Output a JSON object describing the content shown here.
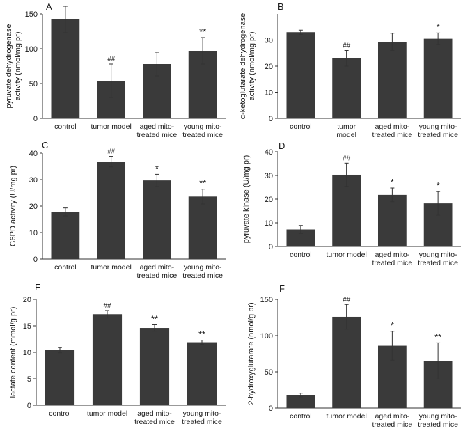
{
  "colors": {
    "bar": "#3a3a3a",
    "axis": "#333333",
    "text": "#1a1a1a"
  },
  "chart_data": [
    {
      "type": "bar",
      "panel_label": "A",
      "ylabel": "pyruvate dehydrogenase activity (nmol/mg pr)",
      "ylabel_lines": [
        "pyruvate dehydrogenase",
        "activity (nmol/mg pr)"
      ],
      "categories": [
        "control",
        "tumor model",
        "aged mito-treated mice",
        "young mito-treated mice"
      ],
      "category_lines": [
        [
          "control"
        ],
        [
          "tumor model"
        ],
        [
          "aged mito-",
          "treated mice"
        ],
        [
          "young mito-",
          "treated mice"
        ]
      ],
      "values": [
        142,
        54,
        78,
        97
      ],
      "errors": [
        19,
        24,
        17,
        19
      ],
      "significance": [
        "",
        "##",
        "",
        "**"
      ],
      "ylim": [
        0,
        150
      ],
      "yticks": [
        0,
        50,
        100,
        150
      ]
    },
    {
      "type": "bar",
      "panel_label": "B",
      "ylabel": "α-ketoglutarate dehydrogenase activity (nmol/mg pr)",
      "ylabel_lines": [
        "α-ketoglutarate dehydrogenase",
        "activity (nmol/mg pr)"
      ],
      "categories": [
        "control",
        "tumor model",
        "aged mito-treated mice",
        "young mito-treated mice"
      ],
      "category_lines": [
        [
          "control"
        ],
        [
          "tumor",
          "model"
        ],
        [
          "aged mito-",
          "treated mice"
        ],
        [
          "young mito-",
          "treated mice"
        ]
      ],
      "values": [
        33,
        23,
        29.3,
        30.5
      ],
      "errors": [
        0.8,
        3,
        3.3,
        2.2
      ],
      "significance": [
        "",
        "##",
        "",
        "*"
      ],
      "ylim": [
        0,
        40
      ],
      "yticks": [
        0,
        10,
        20,
        30
      ]
    },
    {
      "type": "bar",
      "panel_label": "C",
      "ylabel": "G6PD activity (U/mg pr)",
      "ylabel_lines": [
        "G6PD activity (U/mg pr)"
      ],
      "categories": [
        "control",
        "tumor model",
        "aged mito-treated mice",
        "young mito-treated mice"
      ],
      "category_lines": [
        [
          "control"
        ],
        [
          "tumor model"
        ],
        [
          "aged mito-",
          "treated mice"
        ],
        [
          "young mito-",
          "treated mice"
        ]
      ],
      "values": [
        17.8,
        36.8,
        29.7,
        23.6
      ],
      "errors": [
        1.5,
        2,
        2.3,
        2.8
      ],
      "significance": [
        "",
        "##",
        "*",
        "**"
      ],
      "ylim": [
        0,
        40
      ],
      "yticks": [
        0,
        10,
        20,
        30,
        40
      ]
    },
    {
      "type": "bar",
      "panel_label": "D",
      "ylabel": "pyruvate kinase (U/mg pr)",
      "ylabel_lines": [
        "pyruvate kinase (U/mg pr)"
      ],
      "categories": [
        "control",
        "tumor model",
        "aged mito-treated mice",
        "young mito-treated mice"
      ],
      "category_lines": [
        [
          "control"
        ],
        [
          "tumor model"
        ],
        [
          "aged mito-",
          "treated mice"
        ],
        [
          "young mito-",
          "treated mice"
        ]
      ],
      "values": [
        7.2,
        30.3,
        21.8,
        18.2
      ],
      "errors": [
        1.7,
        4.9,
        2.9,
        5
      ],
      "significance": [
        "",
        "##",
        "*",
        "*"
      ],
      "ylim": [
        0,
        40
      ],
      "yticks": [
        0,
        10,
        20,
        30,
        40
      ]
    },
    {
      "type": "bar",
      "panel_label": "E",
      "ylabel": "lactate content (mmol/g pr)",
      "ylabel_lines": [
        "lactate content (mmol/g pr)"
      ],
      "categories": [
        "control",
        "tumor model",
        "aged mito-treated mice",
        "young mito-treated mice"
      ],
      "category_lines": [
        [
          "control"
        ],
        [
          "tumor model"
        ],
        [
          "aged mito-",
          "treated mice"
        ],
        [
          "young mito-",
          "treated mice"
        ]
      ],
      "values": [
        10.4,
        17.2,
        14.6,
        11.9
      ],
      "errors": [
        0.5,
        0.7,
        0.6,
        0.4
      ],
      "significance": [
        "",
        "##",
        "**",
        "**"
      ],
      "ylim": [
        0,
        20
      ],
      "yticks": [
        0,
        5,
        10,
        15,
        20
      ]
    },
    {
      "type": "bar",
      "panel_label": "F",
      "ylabel": "2-hydroxyglutarate (nmol/g pr)",
      "ylabel_lines": [
        "2-hydroxyglutarate (nmol/g pr)"
      ],
      "categories": [
        "control",
        "tumor model",
        "aged mito-treated mice",
        "young mito-treated mice"
      ],
      "category_lines": [
        [
          "control"
        ],
        [
          "tumor model"
        ],
        [
          "aged mito-",
          "treated mice"
        ],
        [
          "young mito-",
          "treated mice"
        ]
      ],
      "values": [
        18,
        126,
        86,
        65
      ],
      "errors": [
        2.5,
        17,
        20,
        25
      ],
      "significance": [
        "",
        "##",
        "*",
        "**"
      ],
      "ylim": [
        0,
        150
      ],
      "yticks": [
        0,
        50,
        100,
        150
      ]
    }
  ]
}
